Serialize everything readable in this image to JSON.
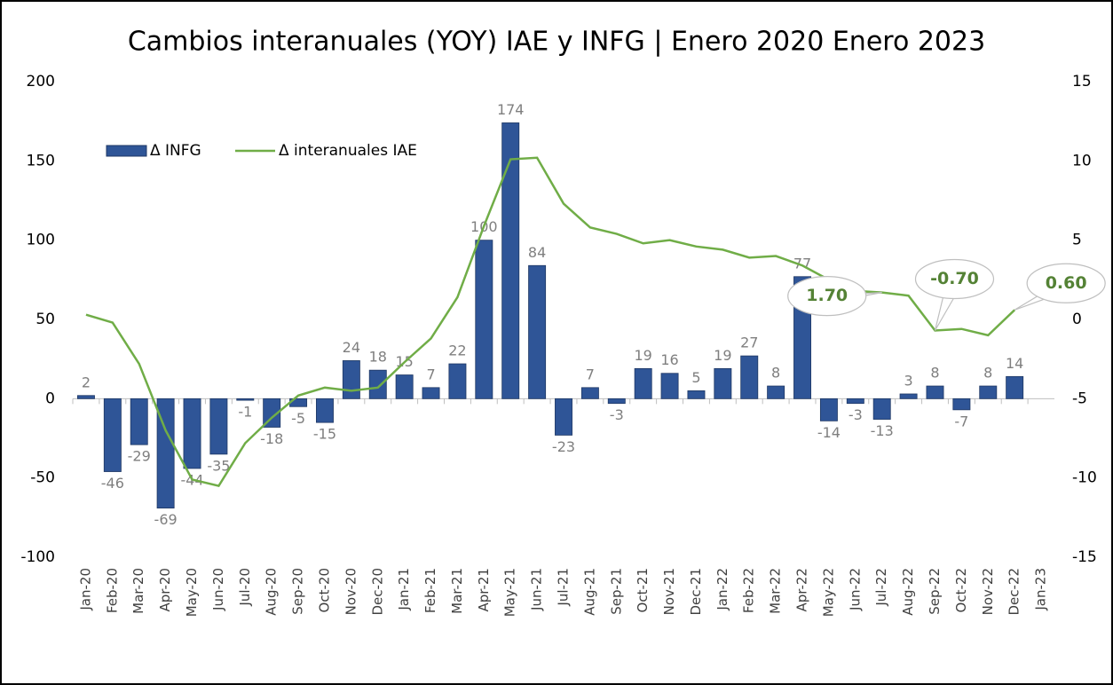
{
  "chart_data": {
    "type": "bar_line",
    "title": "Cambios interanuales (YOY) IAE y INFG | Enero 2020 Enero 2023",
    "categories": [
      "Jan-20",
      "Feb-20",
      "Mar-20",
      "Apr-20",
      "May-20",
      "Jun-20",
      "Jul-20",
      "Aug-20",
      "Sep-20",
      "Oct-20",
      "Nov-20",
      "Dec-20",
      "Jan-21",
      "Feb-21",
      "Mar-21",
      "Apr-21",
      "May-21",
      "Jun-21",
      "Jul-21",
      "Aug-21",
      "Sep-21",
      "Oct-21",
      "Nov-21",
      "Dec-21",
      "Jan-22",
      "Feb-22",
      "Mar-22",
      "Apr-22",
      "May-22",
      "Jun-22",
      "Jul-22",
      "Aug-22",
      "Sep-22",
      "Oct-22",
      "Nov-22",
      "Dec-22",
      "Jan-23"
    ],
    "series": [
      {
        "name": "Δ INFG",
        "type": "bar",
        "color": "#2f5597",
        "values": [
          2,
          -46,
          -29,
          -69,
          -44,
          -35,
          -1,
          -18,
          -5,
          -15,
          24,
          18,
          15,
          7,
          22,
          100,
          174,
          84,
          -23,
          7,
          -3,
          19,
          16,
          5,
          19,
          27,
          8,
          77,
          -14,
          -3,
          -13,
          3,
          8,
          -7,
          8,
          14,
          null
        ]
      },
      {
        "name": "Δ interanuales IAE",
        "type": "line",
        "axis": "y2",
        "color": "#70ad47",
        "values": [
          0.3,
          -0.2,
          -2.8,
          -7.0,
          -10.1,
          -10.5,
          -7.8,
          -6.2,
          -4.8,
          -4.3,
          -4.5,
          -4.3,
          -2.7,
          -1.2,
          1.4,
          5.9,
          10.1,
          10.2,
          7.3,
          5.8,
          5.4,
          4.8,
          5.0,
          4.6,
          4.4,
          3.9,
          4.0,
          3.4,
          2.5,
          1.8,
          1.7,
          1.5,
          -0.7,
          -0.6,
          -1.0,
          0.6,
          null
        ]
      }
    ],
    "annotations": [
      {
        "text": "1.70",
        "category": "Jul-22",
        "value": 1.7
      },
      {
        "text": "-0.70",
        "category": "Sep-22",
        "value": -0.7
      },
      {
        "text": "0.60",
        "category": "Dec-22",
        "value": 0.6
      }
    ],
    "ylim": [
      -100,
      200
    ],
    "yticks": [
      -100,
      -50,
      0,
      50,
      100,
      150,
      200
    ],
    "y2lim": [
      -15,
      15
    ],
    "y2ticks": [
      -15,
      -10,
      -5,
      0,
      5,
      10,
      15
    ],
    "legend": "top-left"
  }
}
